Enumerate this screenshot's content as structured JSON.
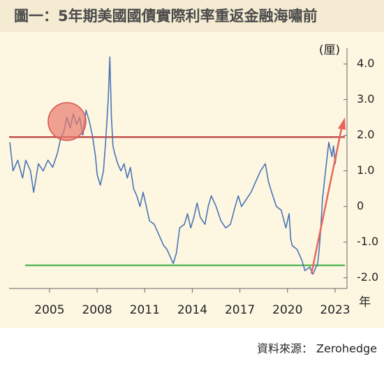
{
  "chart_data": {
    "type": "line",
    "title": "圖一：5年期美國國債實際利率重返金融海嘯前",
    "y_label": "(厘)",
    "x_label": "年",
    "source": "資料來源： Zerohedge",
    "x": [
      2002.5,
      2002.7,
      2003.0,
      2003.3,
      2003.5,
      2003.8,
      2004.0,
      2004.3,
      2004.6,
      2004.9,
      2005.2,
      2005.5,
      2005.7,
      2005.9,
      2006.1,
      2006.3,
      2006.5,
      2006.7,
      2006.9,
      2007.1,
      2007.3,
      2007.5,
      2007.7,
      2007.9,
      2008.0,
      2008.2,
      2008.4,
      2008.55,
      2008.7,
      2008.8,
      2008.9,
      2009.0,
      2009.1,
      2009.3,
      2009.5,
      2009.7,
      2009.9,
      2010.1,
      2010.3,
      2010.5,
      2010.7,
      2010.9,
      2011.1,
      2011.3,
      2011.6,
      2011.8,
      2012.0,
      2012.2,
      2012.4,
      2012.6,
      2012.8,
      2013.0,
      2013.2,
      2013.5,
      2013.7,
      2013.9,
      2014.1,
      2014.3,
      2014.5,
      2014.8,
      2015.0,
      2015.2,
      2015.5,
      2015.8,
      2016.1,
      2016.4,
      2016.7,
      2016.9,
      2017.1,
      2017.4,
      2017.7,
      2017.9,
      2018.1,
      2018.3,
      2018.6,
      2018.8,
      2019.0,
      2019.3,
      2019.6,
      2019.9,
      2020.1,
      2020.2,
      2020.3,
      2020.6,
      2020.9,
      2021.1,
      2021.4,
      2021.6,
      2021.9,
      2022.0,
      2022.1,
      2022.2,
      2022.4,
      2022.6,
      2022.8,
      2022.9,
      2023.0,
      2023.2,
      2023.4,
      2023.6
    ],
    "series": [
      {
        "name": "5年期美國國債實際利率",
        "color": "#4a74b4",
        "values": [
          1.8,
          1.0,
          1.3,
          0.8,
          1.3,
          1.0,
          0.4,
          1.2,
          1.0,
          1.3,
          1.1,
          1.5,
          1.9,
          2.1,
          2.5,
          2.2,
          2.6,
          2.3,
          2.5,
          2.0,
          2.7,
          2.4,
          2.0,
          1.4,
          0.9,
          0.6,
          1.0,
          1.9,
          3.0,
          4.2,
          2.5,
          1.7,
          1.5,
          1.2,
          1.0,
          1.2,
          0.8,
          1.1,
          0.5,
          0.3,
          0.0,
          0.4,
          0.0,
          -0.4,
          -0.5,
          -0.7,
          -0.9,
          -1.1,
          -1.2,
          -1.4,
          -1.6,
          -1.3,
          -0.6,
          -0.5,
          -0.2,
          -0.6,
          -0.3,
          0.1,
          -0.3,
          -0.5,
          0.0,
          0.3,
          0.0,
          -0.4,
          -0.6,
          -0.5,
          0.0,
          0.3,
          0.0,
          0.2,
          0.4,
          0.6,
          0.8,
          1.0,
          1.2,
          0.7,
          0.4,
          0.0,
          -0.1,
          -0.6,
          -0.2,
          -0.9,
          -1.1,
          -1.2,
          -1.5,
          -1.8,
          -1.7,
          -1.9,
          -1.6,
          -1.2,
          -0.6,
          0.2,
          1.0,
          1.8,
          1.4,
          1.7,
          1.2,
          1.8,
          2.2,
          2.3
        ]
      }
    ],
    "reference_lines": [
      {
        "value": 1.95,
        "color": "#c0504d"
      },
      {
        "value": -1.65,
        "color": "#5cb85c"
      }
    ],
    "xlim": [
      2002.45,
      2023.75
    ],
    "xticks": [
      2005,
      2008,
      2011,
      2014,
      2017,
      2020,
      2023
    ],
    "ylim": [
      -2.3,
      4.6
    ],
    "yticks": [
      {
        "value": 4,
        "label": "4.0"
      },
      {
        "value": 3,
        "label": "3.0"
      },
      {
        "value": 2,
        "label": "2.0"
      },
      {
        "value": 1,
        "label": "1.0"
      },
      0,
      {
        "value": -1,
        "label": "-1.0"
      },
      {
        "value": -2,
        "label": "-2.0"
      }
    ]
  }
}
